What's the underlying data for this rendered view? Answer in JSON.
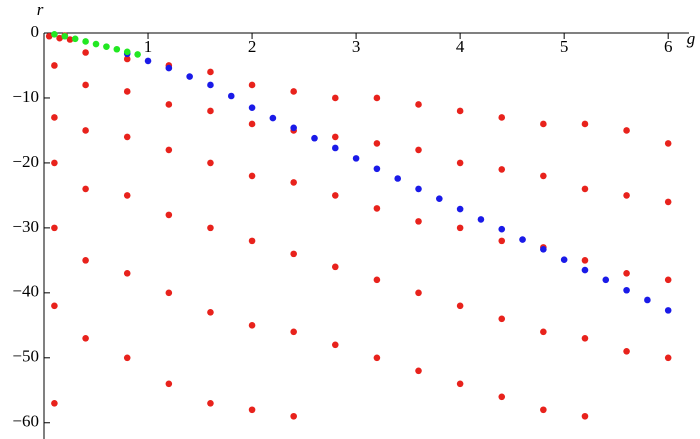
{
  "chart_data": {
    "type": "scatter",
    "xlabel": "g",
    "ylabel": "r",
    "xlim": [
      0,
      6.2
    ],
    "ylim": [
      -62.5,
      0
    ],
    "xticks": [
      1,
      2,
      3,
      4,
      5,
      6
    ],
    "yticks": [
      0,
      {
        "value": -10,
        "label": "−10"
      },
      {
        "value": -20,
        "label": "−20"
      },
      {
        "value": -30,
        "label": "−30"
      },
      {
        "value": -40,
        "label": "−40"
      },
      {
        "value": -50,
        "label": "−50"
      },
      {
        "value": -60,
        "label": "−60"
      }
    ],
    "series": [
      {
        "color": "#e8221c",
        "points": [
          [
            0.05,
            -0.5
          ],
          [
            0.15,
            -0.8
          ],
          [
            0.25,
            -1.0
          ],
          [
            0.2,
            -0.4
          ],
          [
            0.1,
            -5
          ],
          [
            0.1,
            -13
          ],
          [
            0.1,
            -20
          ],
          [
            0.1,
            -30
          ],
          [
            0.1,
            -42
          ],
          [
            0.1,
            -57
          ],
          [
            0.4,
            -3
          ],
          [
            0.4,
            -8
          ],
          [
            0.4,
            -15
          ],
          [
            0.4,
            -24
          ],
          [
            0.4,
            -35
          ],
          [
            0.4,
            -47
          ],
          [
            0.8,
            -4
          ],
          [
            0.8,
            -9
          ],
          [
            0.8,
            -16
          ],
          [
            0.8,
            -25
          ],
          [
            0.8,
            -37
          ],
          [
            0.8,
            -50
          ],
          [
            1.2,
            -5
          ],
          [
            1.2,
            -11
          ],
          [
            1.2,
            -18
          ],
          [
            1.2,
            -28
          ],
          [
            1.2,
            -40
          ],
          [
            1.2,
            -54
          ],
          [
            1.6,
            -6
          ],
          [
            1.6,
            -12
          ],
          [
            1.6,
            -20
          ],
          [
            1.6,
            -30
          ],
          [
            1.6,
            -43
          ],
          [
            1.6,
            -57
          ],
          [
            2.0,
            -8
          ],
          [
            2.0,
            -14
          ],
          [
            2.0,
            -22
          ],
          [
            2.0,
            -32
          ],
          [
            2.0,
            -45
          ],
          [
            2.0,
            -58
          ],
          [
            2.4,
            -9
          ],
          [
            2.4,
            -15
          ],
          [
            2.4,
            -23
          ],
          [
            2.4,
            -34
          ],
          [
            2.4,
            -46
          ],
          [
            2.4,
            -59
          ],
          [
            2.8,
            -10
          ],
          [
            2.8,
            -16
          ],
          [
            2.8,
            -25
          ],
          [
            2.8,
            -36
          ],
          [
            2.8,
            -48
          ],
          [
            3.2,
            -10
          ],
          [
            3.2,
            -17
          ],
          [
            3.2,
            -27
          ],
          [
            3.2,
            -38
          ],
          [
            3.2,
            -50
          ],
          [
            3.6,
            -11
          ],
          [
            3.6,
            -18
          ],
          [
            3.6,
            -29
          ],
          [
            3.6,
            -40
          ],
          [
            3.6,
            -52
          ],
          [
            4.0,
            -12
          ],
          [
            4.0,
            -20
          ],
          [
            4.0,
            -30
          ],
          [
            4.0,
            -42
          ],
          [
            4.0,
            -54
          ],
          [
            4.4,
            -13
          ],
          [
            4.4,
            -21
          ],
          [
            4.4,
            -32
          ],
          [
            4.4,
            -44
          ],
          [
            4.4,
            -56
          ],
          [
            4.8,
            -14
          ],
          [
            4.8,
            -22
          ],
          [
            4.8,
            -33
          ],
          [
            4.8,
            -46
          ],
          [
            4.8,
            -58
          ],
          [
            5.2,
            -14
          ],
          [
            5.2,
            -24
          ],
          [
            5.2,
            -35
          ],
          [
            5.2,
            -47
          ],
          [
            5.2,
            -59
          ],
          [
            5.6,
            -15
          ],
          [
            5.6,
            -25
          ],
          [
            5.6,
            -37
          ],
          [
            5.6,
            -49
          ],
          [
            6.0,
            -17
          ],
          [
            6.0,
            -26
          ],
          [
            6.0,
            -38
          ],
          [
            6.0,
            -50
          ]
        ]
      },
      {
        "color": "#1a1ae8",
        "points": [
          [
            0.8,
            -3.2
          ],
          [
            1.0,
            -4.3
          ],
          [
            1.2,
            -5.4
          ],
          [
            1.4,
            -6.7
          ],
          [
            1.6,
            -8.0
          ],
          [
            1.8,
            -9.7
          ],
          [
            2.0,
            -11.5
          ],
          [
            2.2,
            -13.1
          ],
          [
            2.4,
            -14.6
          ],
          [
            2.6,
            -16.2
          ],
          [
            2.8,
            -17.7
          ],
          [
            3.0,
            -19.3
          ],
          [
            3.2,
            -20.9
          ],
          [
            3.4,
            -22.4
          ],
          [
            3.6,
            -24.0
          ],
          [
            3.8,
            -25.5
          ],
          [
            4.0,
            -27.1
          ],
          [
            4.2,
            -28.7
          ],
          [
            4.4,
            -30.2
          ],
          [
            4.6,
            -31.8
          ],
          [
            4.8,
            -33.3
          ],
          [
            5.0,
            -34.9
          ],
          [
            5.2,
            -36.5
          ],
          [
            5.4,
            -38.0
          ],
          [
            5.6,
            -39.6
          ],
          [
            5.8,
            -41.1
          ],
          [
            6.0,
            -42.7
          ]
        ]
      },
      {
        "color": "#22e822",
        "points": [
          [
            0.1,
            -0.2
          ],
          [
            0.2,
            -0.5
          ],
          [
            0.3,
            -0.9
          ],
          [
            0.4,
            -1.3
          ],
          [
            0.5,
            -1.7
          ],
          [
            0.6,
            -2.1
          ],
          [
            0.7,
            -2.5
          ],
          [
            0.8,
            -2.9
          ],
          [
            0.9,
            -3.3
          ]
        ]
      }
    ]
  }
}
